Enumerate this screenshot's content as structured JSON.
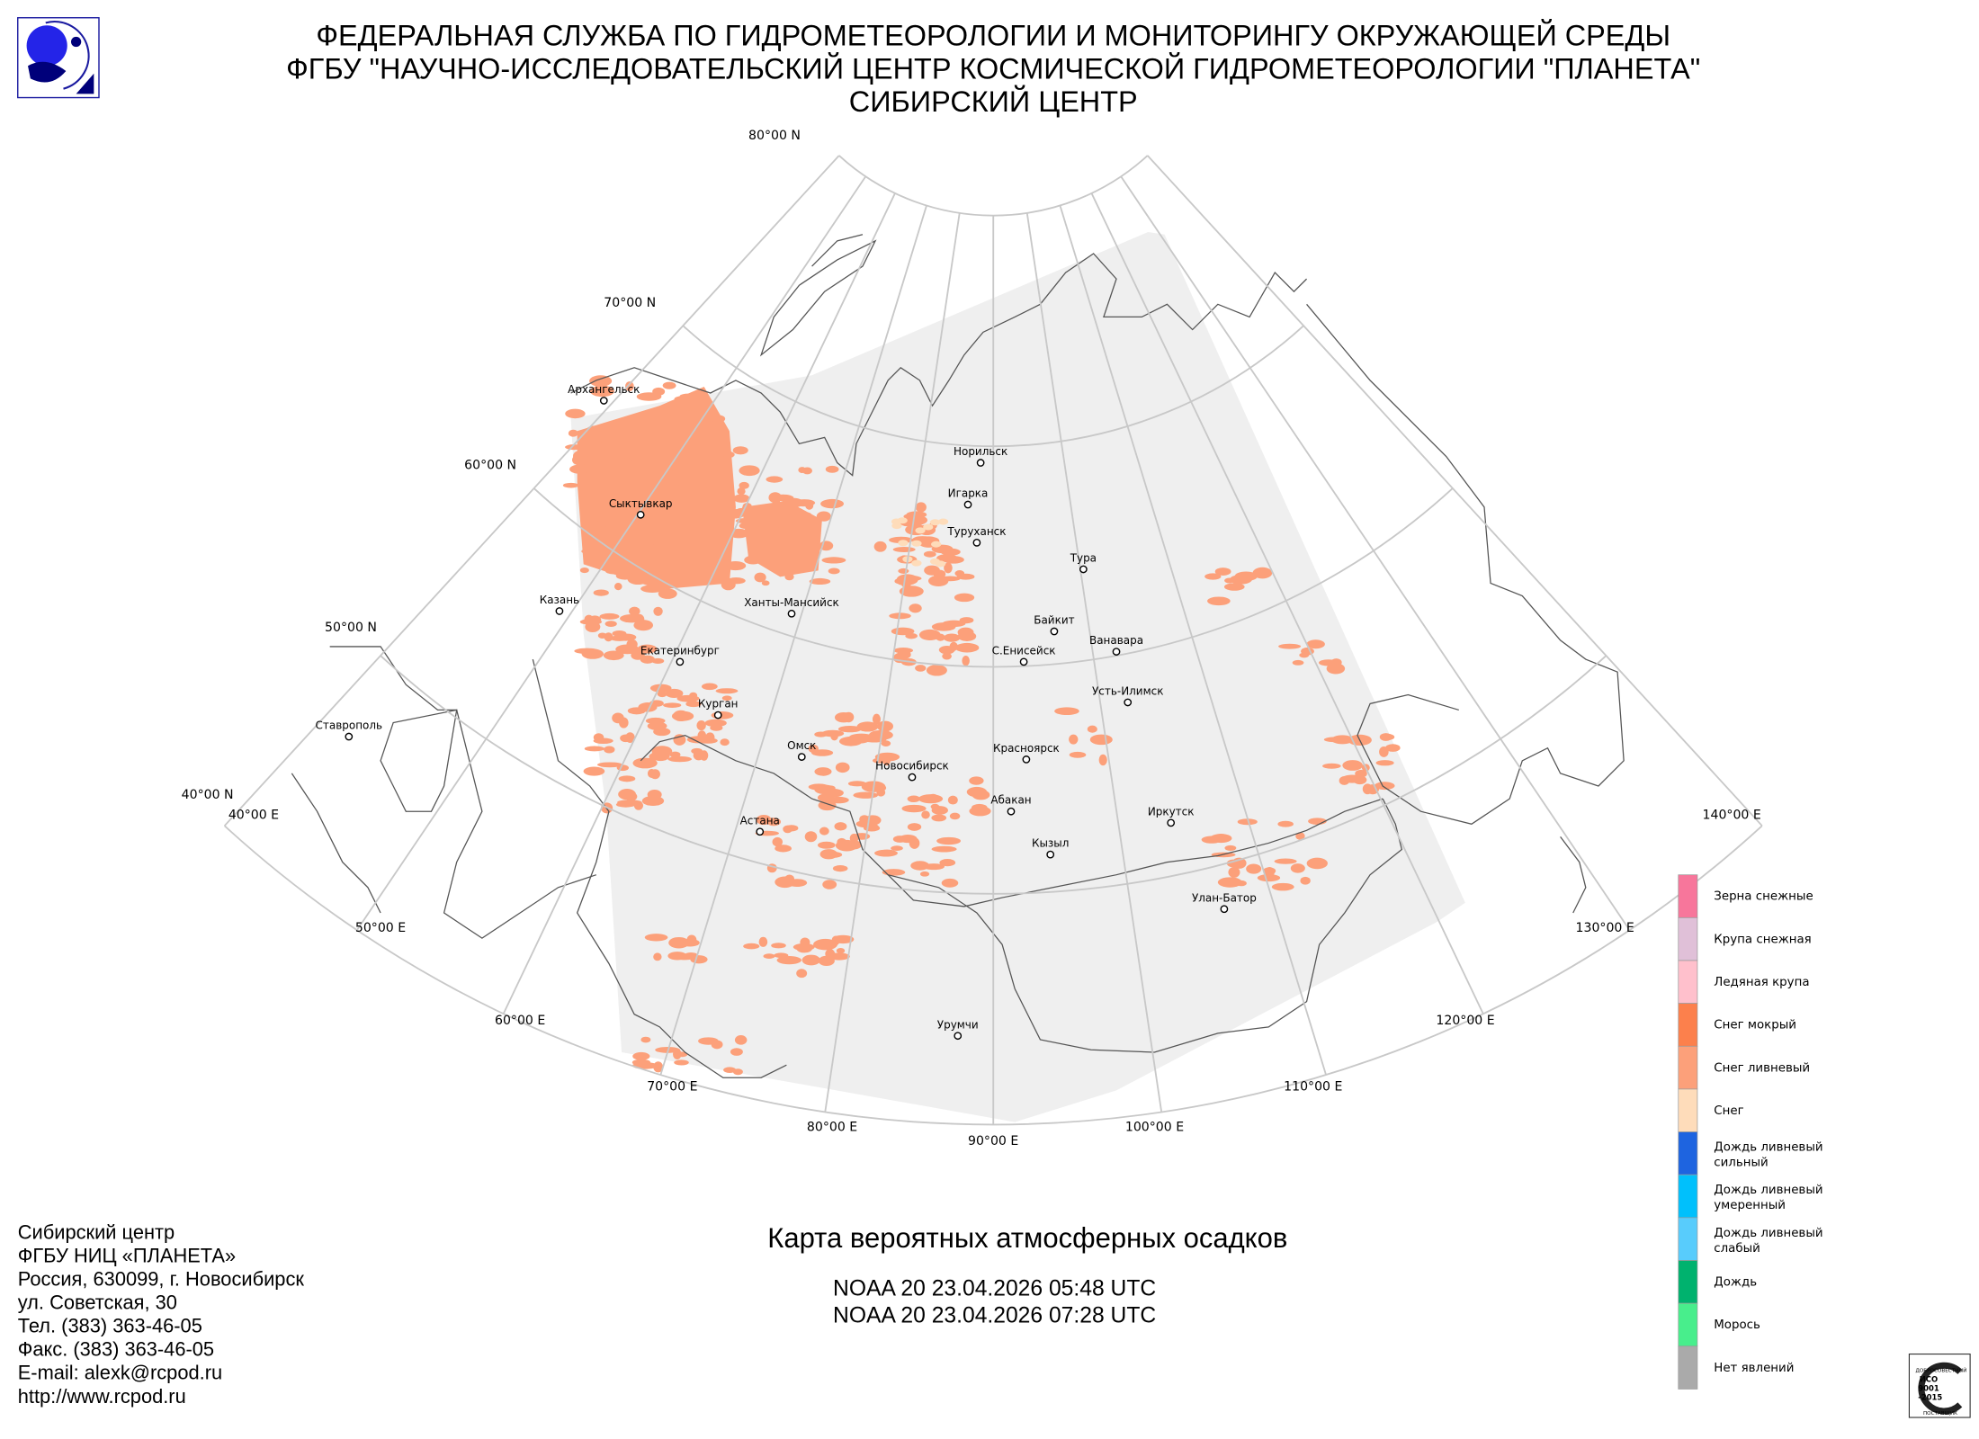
{
  "header": {
    "line1": "ФЕДЕРАЛЬНАЯ СЛУЖБА ПО ГИДРОМЕТЕОРОЛОГИИ И МОНИТОРИНГУ ОКРУЖАЮЩЕЙ СРЕДЫ",
    "line2": "ФГБУ \"НАУЧНО-ИССЛЕДОВАТЕЛЬСКИЙ ЦЕНТР КОСМИЧЕСКОЙ ГИДРОМЕТЕОРОЛОГИИ \"ПЛАНЕТА\"",
    "line3": "СИБИРСКИЙ ЦЕНТР"
  },
  "grid": {
    "latitudes": [
      "80°00 N",
      "70°00 N",
      "60°00 N",
      "50°00 N",
      "40°00 N"
    ],
    "longitudes": [
      "40°00 E",
      "50°00 E",
      "60°00 E",
      "70°00 E",
      "80°00 E",
      "90°00 E",
      "100°00 E",
      "110°00 E",
      "120°00 E",
      "130°00 E",
      "140°00 E"
    ]
  },
  "cities": [
    "Архангельск",
    "Сыктывкар",
    "Казань",
    "Екатеринбург",
    "Курган",
    "Ставрополь",
    "Омск",
    "Астана",
    "Новосибирск",
    "Ханты-Мансийск",
    "Норильск",
    "Игарка",
    "Туруханск",
    "Тура",
    "Байкит",
    "С.Енисейск",
    "Ванавара",
    "Усть-Илимск",
    "Красноярск",
    "Абакан",
    "Кызыл",
    "Иркутск",
    "Улан-Батор",
    "Урумчи"
  ],
  "legend": [
    {
      "label1": "Зерна снежные",
      "label2": "",
      "color": "#f7769b"
    },
    {
      "label1": "Крупа снежная",
      "label2": "",
      "color": "#e0c0d8"
    },
    {
      "label1": "Ледяная крупа",
      "label2": "",
      "color": "#ffc0cc"
    },
    {
      "label1": "Снег мокрый",
      "label2": "",
      "color": "#fc804c"
    },
    {
      "label1": "Снег ливневый",
      "label2": "",
      "color": "#fca07a"
    },
    {
      "label1": "Снег",
      "label2": "",
      "color": "#fedcba"
    },
    {
      "label1": "Дождь ливневый",
      "label2": "сильный",
      "color": "#1e64e0"
    },
    {
      "label1": "Дождь ливневый",
      "label2": "умеренный",
      "color": "#00c0fc"
    },
    {
      "label1": "Дождь ливневый",
      "label2": "слабый",
      "color": "#58ccfc"
    },
    {
      "label1": "Дождь",
      "label2": "",
      "color": "#00b26e"
    },
    {
      "label1": "Морось",
      "label2": "",
      "color": "#48ee8c"
    },
    {
      "label1": "Нет явлений",
      "label2": "",
      "color": "#aaaaaa"
    }
  ],
  "info": [
    "Сибирский центр",
    "ФГБУ НИЦ «ПЛАНЕТА»",
    "Россия, 630099, г. Новосибирск",
    "ул. Советская, 30",
    "Тел. (383) 363-46-05",
    "Факс. (383) 363-46-05",
    "E-mail: alexk@rcpod.ru",
    "http://www.rcpod.ru"
  ],
  "map_title": "Карта вероятных атмосферных осадков",
  "passes": [
    "NOAA 20 23.04.2026  05:48 UTC",
    "NOAA 20 23.04.2026  07:28 UTC"
  ],
  "iso": {
    "top": "ДОБРОСОВЕСТНЫЙ",
    "l1": "ИСО",
    "l2": "9001",
    "l3": "-2015",
    "bottom": "ПОСТАВЩИК"
  },
  "colors": {
    "swath": "#efefef",
    "grid": "#c8c8c8",
    "precip": "#fca07a",
    "snow": "#fedcba",
    "logo": "#2020e0"
  }
}
